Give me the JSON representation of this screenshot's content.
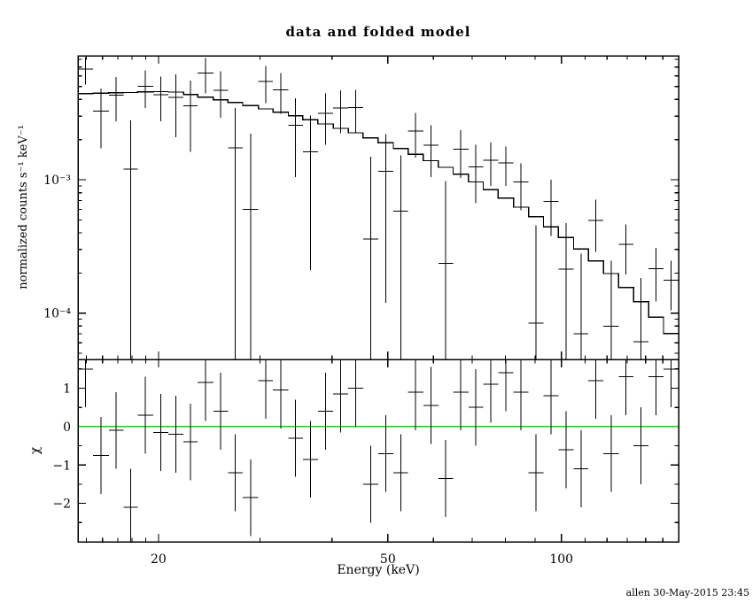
{
  "footer": "allen 30-May-2015 23:45",
  "colors": {
    "background": "#ffffff",
    "axis": "#000000",
    "data": "#000000",
    "model": "#000000",
    "zero_line": "#00dd00"
  },
  "chart_data": {
    "type": "line",
    "title": "data and folded model",
    "xlabel": "Energy (keV)",
    "ylabel_top": "normalized counts s⁻¹ keV⁻¹",
    "ylabel_bottom": "χ",
    "x_scale": "log",
    "xlim": [
      14.5,
      159.7
    ],
    "xticks": [
      {
        "v": 20,
        "label": "20"
      },
      {
        "v": 50,
        "label": "50"
      },
      {
        "v": 100,
        "label": "100"
      }
    ],
    "xticks_minor": [
      15,
      16,
      17,
      18,
      19,
      30,
      40,
      60,
      70,
      80,
      90,
      110,
      120,
      130,
      140,
      150
    ],
    "top_panel": {
      "y_scale": "log",
      "ylim": [
        4.5e-05,
        0.0085
      ],
      "yticks": [
        {
          "v": 0.0001,
          "label": "10⁻⁴"
        },
        {
          "v": 0.001,
          "label": "10⁻³"
        }
      ],
      "yticks_minor": [
        5e-05,
        6e-05,
        7e-05,
        8e-05,
        9e-05,
        0.0002,
        0.0003,
        0.0004,
        0.0005,
        0.0006,
        0.0007,
        0.0008,
        0.0009,
        0.002,
        0.003,
        0.004,
        0.005,
        0.006,
        0.007,
        0.008
      ]
    },
    "bottom_panel": {
      "y_scale": "linear",
      "ylim": [
        -3.0,
        1.75
      ],
      "yticks": [
        {
          "v": 1,
          "label": "1"
        },
        {
          "v": 0,
          "label": "0"
        },
        {
          "v": -1,
          "label": "−1"
        },
        {
          "v": -2,
          "label": "−2"
        }
      ],
      "yticks_minor": [
        -2.5,
        -1.5,
        -0.5,
        0.5,
        1.5
      ],
      "zero_line_value": 0,
      "residual_error": 1.0
    },
    "bins_kev": [
      14.5,
      15.4,
      16.4,
      17.4,
      18.4,
      19.6,
      20.8,
      22.1,
      23.4,
      24.9,
      26.4,
      28.0,
      29.8,
      31.6,
      33.6,
      35.6,
      37.8,
      40.2,
      42.7,
      45.3,
      48.1,
      51.1,
      54.2,
      57.6,
      61.2,
      64.9,
      69.0,
      73.2,
      77.7,
      82.6,
      87.7,
      93.1,
      98.8,
      105.0,
      111.4,
      118.3,
      125.7,
      133.4,
      141.7,
      150.4,
      159.7
    ],
    "model_counts": [
      0.00442,
      0.00445,
      0.00448,
      0.00451,
      0.00455,
      0.00458,
      0.00454,
      0.00436,
      0.00417,
      0.00398,
      0.00379,
      0.00359,
      0.0034,
      0.0032,
      0.00301,
      0.00281,
      0.00262,
      0.00243,
      0.00225,
      0.00206,
      0.00189,
      0.00171,
      0.00155,
      0.00139,
      0.00124,
      0.0011,
      0.000964,
      0.000841,
      0.000727,
      0.000623,
      0.000528,
      0.000444,
      0.000369,
      0.000303,
      0.000246,
      0.000198,
      0.000156,
      0.000122,
      9.34e-05,
      7.05e-05
    ],
    "data_counts": [
      0.00674,
      0.00328,
      0.00432,
      0.0012,
      0.00503,
      0.00434,
      0.00413,
      0.00358,
      0.00633,
      0.0047,
      0.00174,
      0.000601,
      0.00544,
      0.00472,
      0.00256,
      0.00162,
      0.00314,
      0.00346,
      0.00349,
      0.00036,
      0.00116,
      0.00058,
      0.00232,
      0.00181,
      0.000236,
      0.00169,
      0.00125,
      0.0014,
      0.00134,
      0.00096,
      8.4e-05,
      0.00069,
      0.000214,
      7e-05,
      0.000497,
      8e-05,
      0.000328,
      6.1e-05,
      0.000215,
      0.000176
    ],
    "data_errors": [
      0.00155,
      0.00156,
      0.00157,
      0.00158,
      0.00159,
      0.0016,
      0.00204,
      0.00196,
      0.00188,
      0.00179,
      0.00171,
      0.00162,
      0.0017,
      0.0016,
      0.00151,
      0.00141,
      0.00131,
      0.00122,
      0.00124,
      0.00113,
      0.00104,
      0.00094,
      0.00085,
      0.00076,
      0.00074,
      0.00066,
      0.00058,
      0.0005,
      0.00044,
      0.00037,
      0.00037,
      0.00031,
      0.00026,
      0.00021,
      0.00021,
      0.000168,
      0.000133,
      0.000122,
      9.3e-05,
      7.1e-05
    ],
    "residual_chi": [
      1.5,
      -0.75,
      -0.1,
      -2.1,
      0.3,
      -0.15,
      -0.2,
      -0.4,
      1.15,
      0.4,
      -1.2,
      -1.85,
      1.2,
      0.95,
      -0.3,
      -0.85,
      0.4,
      0.85,
      1.0,
      -1.5,
      -0.7,
      -1.2,
      0.9,
      0.55,
      -1.35,
      0.9,
      0.5,
      1.1,
      1.4,
      0.9,
      -1.2,
      0.8,
      -0.6,
      -1.1,
      1.2,
      -0.7,
      1.3,
      -0.5,
      1.3,
      1.5
    ]
  }
}
